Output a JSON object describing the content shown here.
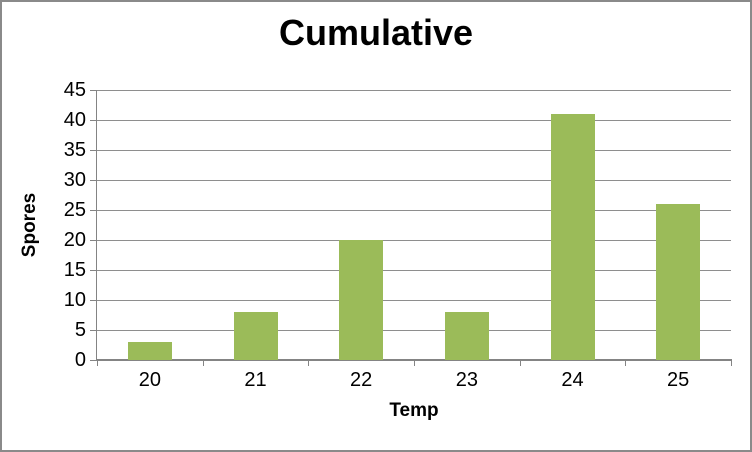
{
  "chart_data": {
    "type": "bar",
    "title": "Cumulative",
    "xlabel": "Temp",
    "ylabel": "Spores",
    "categories": [
      "20",
      "21",
      "22",
      "23",
      "24",
      "25"
    ],
    "values": [
      3,
      8,
      20,
      8,
      41,
      26
    ],
    "ylim": [
      0,
      45
    ],
    "yticks": [
      0,
      5,
      10,
      15,
      20,
      25,
      30,
      35,
      40,
      45
    ],
    "grid": true,
    "legend": false,
    "colors": {
      "bar": "#9BBB59",
      "gridline": "#8E8E8E",
      "axis": "#848484",
      "text": "#000000",
      "frame_border": "#8A8A8A",
      "background": "#FFFFFF"
    }
  }
}
